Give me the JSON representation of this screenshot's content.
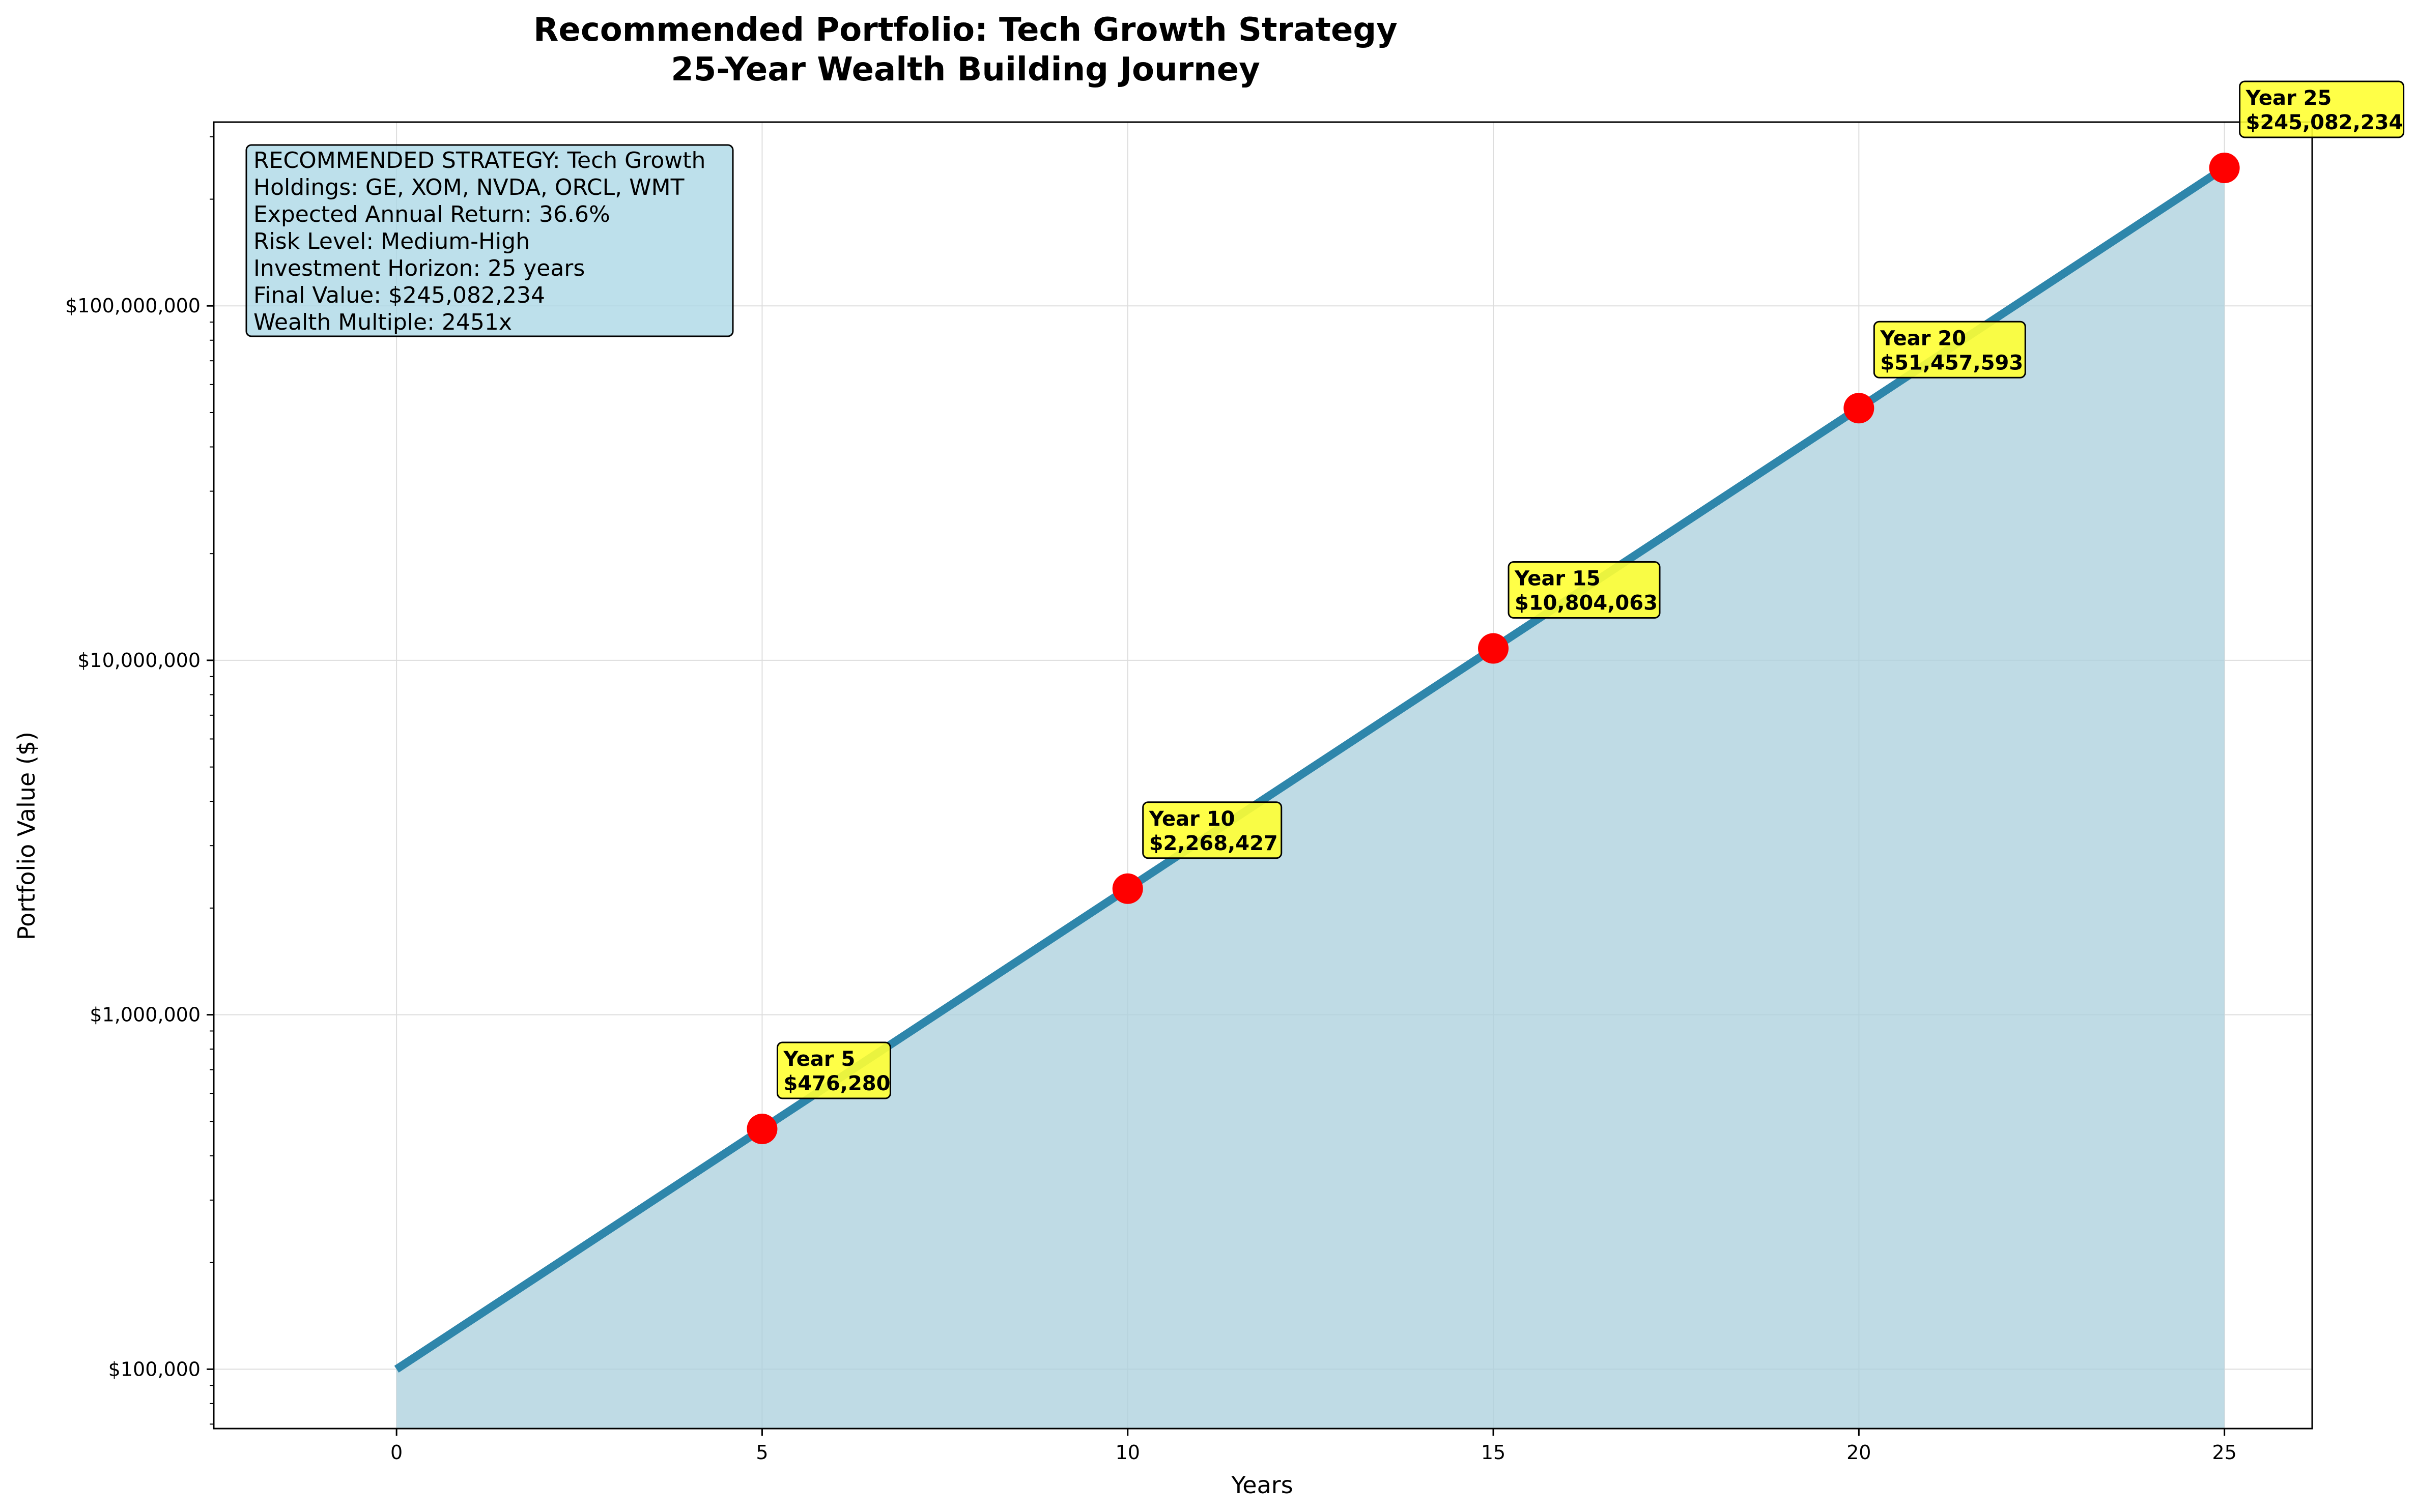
{
  "chart_data": {
    "type": "area",
    "title": [
      "Recommended Portfolio: Tech Growth Strategy",
      "25-Year Wealth Building Journey"
    ],
    "xlabel": "Years",
    "ylabel": "Portfolio Value ($)",
    "xlim": [
      -2.5,
      26.2
    ],
    "ylim": [
      68000,
      330000000
    ],
    "y_scale": "log",
    "grid": true,
    "x_ticks": [
      0,
      5,
      10,
      15,
      20,
      25
    ],
    "x_tick_labels": [
      "0",
      "5",
      "10",
      "15",
      "20",
      "25"
    ],
    "y_ticks": [
      100000,
      1000000,
      10000000,
      100000000
    ],
    "y_tick_labels": [
      "$100,000",
      "$1,000,000",
      "$10,000,000",
      "$100,000,000"
    ],
    "series": [
      {
        "x": [
          0,
          5,
          10,
          15,
          20,
          25
        ],
        "y": [
          100000,
          476280,
          2268427,
          10804063,
          51457593,
          245082234
        ],
        "color": "#2e86ab",
        "fill_color": "#a9cfdc"
      }
    ],
    "milestones": [
      {
        "x": 5,
        "y": 476280,
        "label_year": "Year 5",
        "label_value": "$476,280"
      },
      {
        "x": 10,
        "y": 2268427,
        "label_year": "Year 10",
        "label_value": "$2,268,427"
      },
      {
        "x": 15,
        "y": 10804063,
        "label_year": "Year 15",
        "label_value": "$10,804,063"
      },
      {
        "x": 20,
        "y": 51457593,
        "label_year": "Year 20",
        "label_value": "$51,457,593"
      },
      {
        "x": 25,
        "y": 245082234,
        "label_year": "Year 25",
        "label_value": "$245,082,234"
      }
    ],
    "marker_color": "#ff0000",
    "annotation_color": "#ffff33",
    "info_box": {
      "color": "#add8e6",
      "lines": [
        "RECOMMENDED STRATEGY: Tech Growth",
        "Holdings: GE, XOM, NVDA, ORCL, WMT",
        "Expected Annual Return: 36.6%",
        "Risk Level: Medium-High",
        "Investment Horizon: 25 years",
        "Final Value: $245,082,234",
        "Wealth Multiple: 2451x"
      ]
    }
  }
}
